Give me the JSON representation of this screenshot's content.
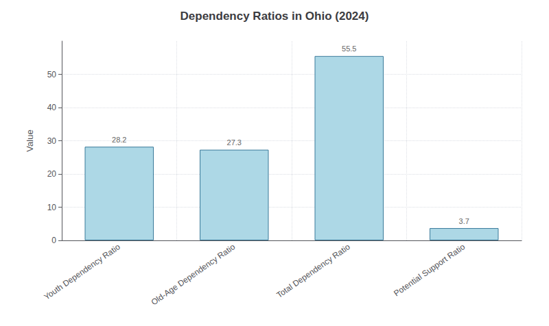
{
  "chart_data": {
    "type": "bar",
    "title": "Dependency Ratios in Ohio (2024)",
    "categories": [
      "Youth Dependency Ratio",
      "Old-Age Dependency Ratio",
      "Total Dependency Ratio",
      "Potential Support Ratio"
    ],
    "values": [
      28.2,
      27.3,
      55.5,
      3.7
    ],
    "color": "#ADD8E6",
    "ylabel": "Value",
    "ylim": [
      0,
      60
    ],
    "yticks": [
      0,
      10,
      20,
      30,
      40,
      50
    ],
    "grid": true,
    "data_labels": true
  }
}
